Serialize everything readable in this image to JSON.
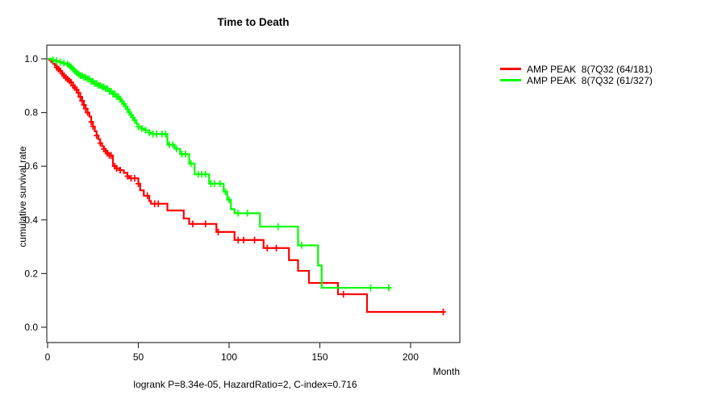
{
  "chart_data": {
    "type": "line",
    "subtype": "kaplan-meier-step",
    "title": "Time to Death",
    "xlabel": "Month",
    "ylabel": "cumulative survival rate",
    "caption": "logrank P=8.34e-05, HazardRatio=2, C-index=0.716",
    "x_ticks": [
      0,
      50,
      100,
      150,
      200
    ],
    "y_ticks": [
      {
        "value": 1.0,
        "label": "1.0"
      },
      {
        "value": 0.8,
        "label": "0.8"
      },
      {
        "value": 0.6,
        "label": "0.6"
      },
      {
        "value": 0.4,
        "label": "0.4"
      },
      {
        "value": 0.2,
        "label": "0.2"
      },
      {
        "value": 0.0,
        "label": "0.0"
      }
    ],
    "xlim": [
      0,
      227
    ],
    "ylim": [
      0,
      1
    ],
    "grid": false,
    "legend_position": "top-right-outside",
    "legend": [
      {
        "label": "AMP PEAK  8(7Q32 (64/181)",
        "color": "#FF0000"
      },
      {
        "label": "AMP PEAK  8(7Q32 (61/327)",
        "color": "#00FF00"
      }
    ],
    "series": [
      {
        "name": "AMP PEAK  8(7Q32 (64/181)",
        "color": "#FF0000",
        "start": [
          0,
          1.0
        ],
        "end_month": 218,
        "steps": [
          [
            1,
            0.995
          ],
          [
            2,
            0.988
          ],
          [
            3,
            0.982
          ],
          [
            4,
            0.975
          ],
          [
            5,
            0.968
          ],
          [
            6,
            0.962
          ],
          [
            7,
            0.955
          ],
          [
            8,
            0.945
          ],
          [
            9,
            0.938
          ],
          [
            10,
            0.93
          ],
          [
            11,
            0.924
          ],
          [
            12,
            0.918
          ],
          [
            13,
            0.912
          ],
          [
            14,
            0.9
          ],
          [
            15,
            0.893
          ],
          [
            16,
            0.885
          ],
          [
            17,
            0.873
          ],
          [
            18,
            0.858
          ],
          [
            19,
            0.843
          ],
          [
            20,
            0.828
          ],
          [
            21,
            0.814
          ],
          [
            22,
            0.8
          ],
          [
            23,
            0.785
          ],
          [
            24,
            0.765
          ],
          [
            25,
            0.748
          ],
          [
            26,
            0.73
          ],
          [
            27,
            0.714
          ],
          [
            28,
            0.7
          ],
          [
            29,
            0.686
          ],
          [
            30,
            0.674
          ],
          [
            31,
            0.664
          ],
          [
            32,
            0.656
          ],
          [
            33,
            0.648
          ],
          [
            34,
            0.64
          ],
          [
            36,
            0.6
          ],
          [
            38,
            0.592
          ],
          [
            40,
            0.585
          ],
          [
            42,
            0.575
          ],
          [
            44,
            0.563
          ],
          [
            45,
            0.555
          ],
          [
            50,
            0.535
          ],
          [
            51,
            0.51
          ],
          [
            53,
            0.49
          ],
          [
            56,
            0.47
          ],
          [
            57,
            0.46
          ],
          [
            66,
            0.435
          ],
          [
            75,
            0.405
          ],
          [
            78,
            0.385
          ],
          [
            93,
            0.355
          ],
          [
            103,
            0.325
          ],
          [
            119,
            0.295
          ],
          [
            133,
            0.25
          ],
          [
            138,
            0.21
          ],
          [
            144,
            0.165
          ],
          [
            160,
            0.123
          ],
          [
            176,
            0.057
          ]
        ],
        "censor_months": [
          5,
          6,
          7,
          8,
          9,
          10,
          11,
          12,
          13,
          14,
          15,
          16,
          17,
          18,
          19,
          20,
          21,
          22,
          24,
          25,
          27,
          29,
          31,
          32,
          33,
          34,
          35,
          37,
          38,
          40,
          44,
          46,
          48,
          50,
          55,
          59,
          61,
          80,
          87,
          94,
          105,
          108,
          114,
          121,
          126,
          163,
          218
        ]
      },
      {
        "name": "AMP PEAK  8(7Q32 (61/327)",
        "color": "#00FF00",
        "start": [
          0,
          1.0
        ],
        "end_month": 189,
        "steps": [
          [
            2,
            0.996
          ],
          [
            4,
            0.992
          ],
          [
            6,
            0.988
          ],
          [
            8,
            0.984
          ],
          [
            10,
            0.98
          ],
          [
            12,
            0.975
          ],
          [
            13,
            0.969
          ],
          [
            14,
            0.962
          ],
          [
            15,
            0.955
          ],
          [
            16,
            0.949
          ],
          [
            17,
            0.943
          ],
          [
            18,
            0.937
          ],
          [
            20,
            0.931
          ],
          [
            22,
            0.925
          ],
          [
            24,
            0.916
          ],
          [
            26,
            0.908
          ],
          [
            28,
            0.901
          ],
          [
            30,
            0.895
          ],
          [
            32,
            0.889
          ],
          [
            34,
            0.879
          ],
          [
            36,
            0.869
          ],
          [
            38,
            0.859
          ],
          [
            40,
            0.849
          ],
          [
            41,
            0.841
          ],
          [
            42,
            0.832
          ],
          [
            43,
            0.822
          ],
          [
            44,
            0.812
          ],
          [
            45,
            0.801
          ],
          [
            46,
            0.791
          ],
          [
            47,
            0.781
          ],
          [
            48,
            0.771
          ],
          [
            49,
            0.757
          ],
          [
            50,
            0.747
          ],
          [
            52,
            0.74
          ],
          [
            54,
            0.734
          ],
          [
            56,
            0.725
          ],
          [
            58,
            0.72
          ],
          [
            66,
            0.68
          ],
          [
            70,
            0.665
          ],
          [
            73,
            0.645
          ],
          [
            78,
            0.61
          ],
          [
            81,
            0.57
          ],
          [
            89,
            0.535
          ],
          [
            97,
            0.505
          ],
          [
            99,
            0.475
          ],
          [
            101,
            0.44
          ],
          [
            103,
            0.425
          ],
          [
            117,
            0.375
          ],
          [
            138,
            0.305
          ],
          [
            149,
            0.23
          ],
          [
            151,
            0.147
          ]
        ],
        "censor_months": [
          3,
          5,
          7,
          9,
          11,
          12,
          13,
          14,
          15,
          16,
          17,
          18,
          19,
          20,
          21,
          22,
          23,
          24,
          25,
          26,
          27,
          28,
          29,
          30,
          31,
          32,
          33,
          34,
          35,
          36,
          37,
          38,
          39,
          40,
          41,
          42,
          43,
          44,
          45,
          46,
          47,
          48,
          50,
          52,
          54,
          56,
          58,
          60,
          63,
          65,
          67,
          69,
          71,
          74,
          76,
          79,
          83,
          85,
          87,
          90,
          92,
          95,
          98,
          100,
          105,
          110,
          127,
          140,
          178,
          188
        ]
      }
    ]
  }
}
